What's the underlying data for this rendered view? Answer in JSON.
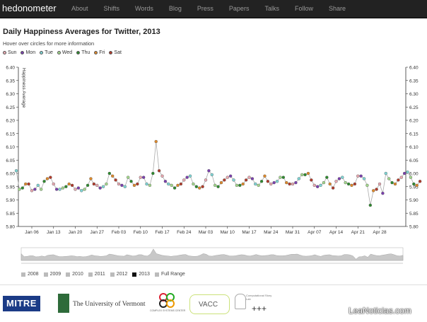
{
  "brand": "hedonometer",
  "nav": [
    "About",
    "Shifts",
    "Words",
    "Blog",
    "Press",
    "Papers",
    "Talks",
    "Follow",
    "Share"
  ],
  "page_title": "Daily Happiness Averages for Twitter, 2013",
  "hover_hint": "Hover over circles for more information",
  "weekday_legend": [
    {
      "label": "Sun",
      "color": "#e8a8b0"
    },
    {
      "label": "Mon",
      "color": "#7b3fb0"
    },
    {
      "label": "Tue",
      "color": "#7fd6d6"
    },
    {
      "label": "Wed",
      "color": "#a3d88c"
    },
    {
      "label": "Thu",
      "color": "#2e8b2e"
    },
    {
      "label": "Fri",
      "color": "#e08a2a"
    },
    {
      "label": "Sat",
      "color": "#b33a2a"
    }
  ],
  "year_buttons": [
    {
      "label": "2008",
      "selected": false
    },
    {
      "label": "2009",
      "selected": false
    },
    {
      "label": "2010",
      "selected": false
    },
    {
      "label": "2011",
      "selected": false
    },
    {
      "label": "2012",
      "selected": false
    },
    {
      "label": "2013",
      "selected": true
    },
    {
      "label": "Full Range",
      "selected": false
    }
  ],
  "logos": {
    "mitre": "MITRE",
    "uvm": "The University of Vermont",
    "complex": "COMPLEX SYSTEMS CENTER",
    "vacc": "VACC",
    "story": "Computational Story Lab",
    "story_plus": "+++"
  },
  "watermark": "LeaNoticias.com",
  "chart_data": {
    "type": "line",
    "ylabel": "Happiness Average",
    "ylim": [
      5.8,
      6.4
    ],
    "y_ticks": [
      "5.80",
      "5.85",
      "5.90",
      "5.95",
      "6.00",
      "6.05",
      "6.10",
      "6.15",
      "6.20",
      "6.25",
      "6.30",
      "6.35",
      "6.40"
    ],
    "x_ticks": [
      "Jan 06",
      "Jan 13",
      "Jan 20",
      "Jan 27",
      "Feb 03",
      "Feb 10",
      "Feb 17",
      "Feb 24",
      "Mar 03",
      "Mar 10",
      "Mar 17",
      "Mar 24",
      "Mar 31",
      "Apr 07",
      "Apr 14",
      "Apr 21",
      "Apr 28"
    ],
    "start_date": "2013-01-01",
    "values": [
      6.01,
      5.94,
      5.945,
      5.96,
      5.96,
      5.935,
      5.94,
      5.955,
      5.94,
      5.97,
      5.98,
      5.985,
      5.96,
      5.94,
      5.94,
      5.945,
      5.95,
      5.96,
      5.955,
      5.94,
      5.945,
      5.935,
      5.94,
      5.955,
      5.98,
      5.96,
      5.955,
      5.945,
      5.95,
      5.96,
      6.0,
      5.99,
      5.975,
      5.96,
      5.955,
      5.95,
      5.985,
      5.97,
      5.955,
      5.96,
      5.985,
      5.985,
      5.96,
      5.955,
      6.0,
      6.12,
      6.01,
      5.99,
      5.97,
      5.96,
      5.955,
      5.945,
      5.955,
      5.96,
      5.975,
      5.985,
      5.99,
      5.96,
      5.95,
      5.945,
      5.95,
      5.975,
      6.01,
      5.995,
      5.955,
      5.95,
      5.965,
      5.975,
      5.985,
      5.99,
      5.975,
      5.955,
      5.955,
      5.96,
      5.975,
      5.985,
      5.98,
      5.96,
      5.955,
      5.97,
      5.99,
      5.97,
      5.96,
      5.965,
      5.97,
      5.985,
      5.985,
      5.965,
      5.96,
      5.96,
      5.965,
      5.98,
      5.995,
      5.995,
      6.0,
      5.975,
      5.955,
      5.95,
      5.955,
      5.965,
      5.985,
      5.96,
      5.945,
      5.97,
      5.98,
      5.985,
      5.965,
      5.96,
      5.955,
      5.96,
      5.99,
      5.99,
      5.98,
      5.955,
      5.88,
      5.935,
      5.94,
      5.96,
      5.925,
      6.0,
      5.98,
      5.965,
      5.96,
      5.975,
      5.985,
      6.0,
      6.005,
      5.985,
      5.96,
      5.955,
      5.97
    ]
  }
}
